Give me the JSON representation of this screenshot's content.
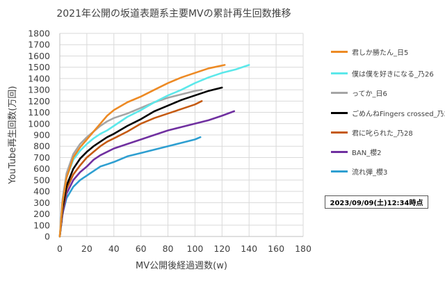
{
  "chart_data": {
    "type": "line",
    "title": "2021年公開の坂道表題系主要MVの累計再生回数推移",
    "xlabel": "MV公開後経過週数(w)",
    "ylabel": "YouTube再生回数(万回)",
    "xlim": [
      0,
      180
    ],
    "ylim": [
      0,
      1800
    ],
    "x_ticks": [
      "0",
      "20",
      "40",
      "60",
      "80",
      "100",
      "120",
      "140",
      "160",
      "180"
    ],
    "y_ticks": [
      "0",
      "100",
      "200",
      "300",
      "400",
      "500",
      "600",
      "700",
      "800",
      "900",
      "1000",
      "1100",
      "1200",
      "1300",
      "1400",
      "1500",
      "1600",
      "1700",
      "1800"
    ],
    "grid": "both",
    "legend_position": "right",
    "series": [
      {
        "name": "君しか勝たん_日5",
        "color": "#ED8A24",
        "x": [
          0,
          2,
          5,
          10,
          15,
          20,
          25,
          30,
          35,
          40,
          50,
          60,
          70,
          80,
          90,
          100,
          110,
          122
        ],
        "y": [
          0,
          300,
          520,
          700,
          790,
          860,
          930,
          1000,
          1070,
          1120,
          1190,
          1240,
          1300,
          1360,
          1410,
          1450,
          1490,
          1520
        ]
      },
      {
        "name": "僕は僕を好きになる_乃26",
        "color": "#5CE8EA",
        "x": [
          0,
          2,
          5,
          10,
          15,
          20,
          25,
          30,
          35,
          40,
          50,
          60,
          70,
          80,
          90,
          100,
          110,
          120,
          130,
          140
        ],
        "y": [
          0,
          300,
          520,
          680,
          760,
          820,
          870,
          910,
          940,
          980,
          1060,
          1120,
          1190,
          1250,
          1300,
          1360,
          1410,
          1450,
          1480,
          1520
        ]
      },
      {
        "name": "ってか_日6",
        "color": "#A5A5A5",
        "x": [
          0,
          2,
          5,
          10,
          15,
          20,
          25,
          30,
          35,
          40,
          50,
          60,
          70,
          80,
          90,
          100,
          105
        ],
        "y": [
          0,
          330,
          560,
          730,
          820,
          880,
          930,
          980,
          1020,
          1050,
          1090,
          1140,
          1190,
          1230,
          1260,
          1290,
          1300
        ]
      },
      {
        "name": "ごめんねFingers crossed_乃27",
        "color": "#000000",
        "x": [
          0,
          2,
          5,
          10,
          15,
          20,
          25,
          30,
          35,
          40,
          50,
          60,
          70,
          80,
          90,
          100,
          110,
          120
        ],
        "y": [
          0,
          250,
          450,
          600,
          690,
          750,
          800,
          840,
          880,
          910,
          980,
          1040,
          1110,
          1160,
          1210,
          1250,
          1290,
          1320
        ]
      },
      {
        "name": "君に叱られた_乃28",
        "color": "#C55A11",
        "x": [
          0,
          2,
          5,
          10,
          15,
          20,
          25,
          30,
          35,
          40,
          50,
          60,
          70,
          80,
          90,
          100,
          105
        ],
        "y": [
          0,
          230,
          420,
          550,
          630,
          700,
          750,
          800,
          840,
          870,
          930,
          1000,
          1050,
          1090,
          1130,
          1170,
          1200
        ]
      },
      {
        "name": "BAN_櫻2",
        "color": "#7030A0",
        "x": [
          0,
          2,
          5,
          10,
          15,
          20,
          25,
          30,
          35,
          40,
          50,
          60,
          70,
          80,
          90,
          100,
          110,
          120,
          129
        ],
        "y": [
          0,
          200,
          380,
          500,
          570,
          620,
          680,
          720,
          750,
          780,
          820,
          860,
          900,
          940,
          970,
          1000,
          1030,
          1070,
          1110
        ]
      },
      {
        "name": "流れ弾_櫻3",
        "color": "#2E9FD1",
        "x": [
          0,
          2,
          5,
          10,
          15,
          20,
          25,
          30,
          35,
          40,
          50,
          60,
          70,
          80,
          90,
          100,
          104
        ],
        "y": [
          0,
          200,
          340,
          440,
          500,
          540,
          580,
          620,
          640,
          660,
          710,
          740,
          770,
          800,
          830,
          860,
          880
        ]
      }
    ]
  },
  "timestamp": "2023/09/09(土)12:34時点"
}
